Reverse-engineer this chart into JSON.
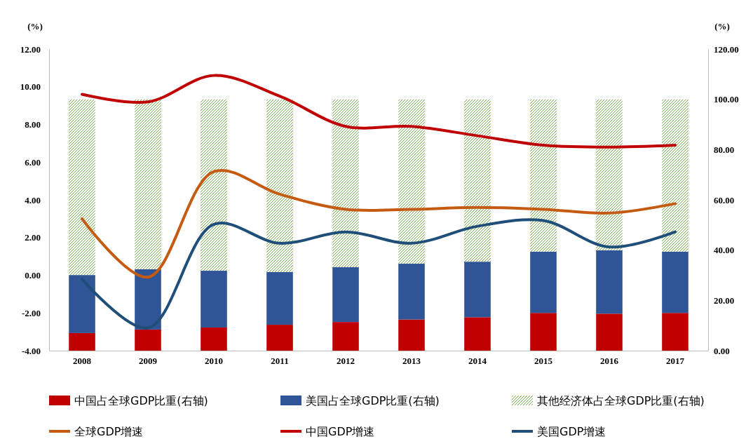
{
  "chart_data": {
    "type": "bar",
    "stacked": true,
    "ylabel": "(%)",
    "y2label": "(%)",
    "categories": [
      "2008",
      "2009",
      "2010",
      "2011",
      "2012",
      "2013",
      "2014",
      "2015",
      "2016",
      "2017"
    ],
    "ylim": [
      -4,
      12
    ],
    "yticks": [
      {
        "value": -4,
        "label": "-4.00"
      },
      {
        "value": -2,
        "label": "-2.00"
      },
      {
        "value": 0,
        "label": "0.00"
      },
      {
        "value": 2,
        "label": "2.00"
      },
      {
        "value": 4,
        "label": "4.00"
      },
      {
        "value": 6,
        "label": "6.00"
      },
      {
        "value": 8,
        "label": "8.00"
      },
      {
        "value": 10,
        "label": "10.00"
      },
      {
        "value": 12,
        "label": "12.00"
      }
    ],
    "y2lim": [
      0,
      120
    ],
    "y2ticks": [
      {
        "value": 0,
        "label": "0.00"
      },
      {
        "value": 20,
        "label": "20.00"
      },
      {
        "value": 40,
        "label": "40.00"
      },
      {
        "value": 60,
        "label": "60.00"
      },
      {
        "value": 80,
        "label": "80.00"
      },
      {
        "value": 100,
        "label": "100.00"
      },
      {
        "value": 120,
        "label": "120.00"
      }
    ],
    "legend": "bottom",
    "grid": false,
    "series": [
      {
        "name": "中国占全球GDP比重(右轴)",
        "axis": "y2",
        "color": "#c00000",
        "values": [
          7.0,
          8.4,
          9.2,
          10.3,
          11.4,
          12.4,
          13.3,
          15.0,
          14.7,
          15.0
        ]
      },
      {
        "name": "美国占全球GDP比重(右轴)",
        "axis": "y2",
        "color": "#2f5597",
        "values": [
          23.1,
          24.0,
          22.6,
          21.0,
          21.8,
          22.2,
          22.1,
          24.4,
          25.2,
          24.4
        ]
      },
      {
        "name": "其他经济体占全球GDP比重(右轴)",
        "axis": "y2",
        "color": "#70ad47",
        "values": [
          69.9,
          67.6,
          68.2,
          68.7,
          66.8,
          65.4,
          64.6,
          60.6,
          60.1,
          60.6
        ]
      },
      {
        "name": "全球GDP增速",
        "type": "line",
        "axis": "y",
        "color": "#c55a11",
        "values": [
          3.0,
          -0.1,
          5.5,
          4.3,
          3.5,
          3.5,
          3.6,
          3.5,
          3.3,
          3.8
        ]
      },
      {
        "name": "中国GDP增速",
        "type": "line",
        "axis": "y",
        "color": "#c00000",
        "values": [
          9.6,
          9.2,
          10.6,
          9.5,
          7.9,
          7.9,
          7.4,
          6.9,
          6.8,
          6.9
        ]
      },
      {
        "name": "美国GDP增速",
        "type": "line",
        "axis": "y",
        "color": "#1f4e79",
        "values": [
          -0.2,
          -2.8,
          2.7,
          1.7,
          2.3,
          1.7,
          2.6,
          2.9,
          1.5,
          2.3
        ]
      }
    ]
  }
}
